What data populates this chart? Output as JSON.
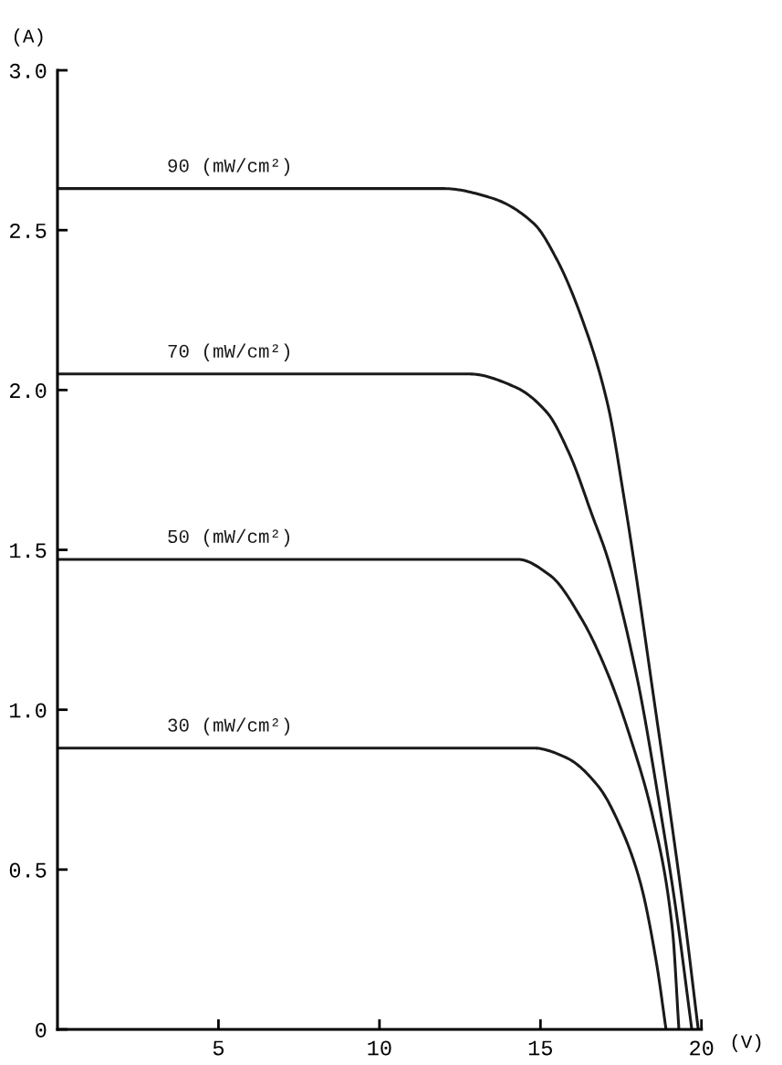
{
  "chart_data": {
    "type": "line",
    "xlabel": "(V)",
    "ylabel": "(A)",
    "xlim": [
      0,
      20
    ],
    "ylim": [
      0,
      3.0
    ],
    "xticks": [
      5,
      10,
      15,
      20
    ],
    "yticks": [
      {
        "value": 0,
        "label": "0"
      },
      {
        "value": 0.5,
        "label": "0.5"
      },
      {
        "value": 1.0,
        "label": "1.0"
      },
      {
        "value": 1.5,
        "label": "1.5"
      },
      {
        "value": 2.0,
        "label": "2.0"
      },
      {
        "value": 2.5,
        "label": "2.5"
      },
      {
        "value": 3.0,
        "label": "3.0"
      }
    ],
    "grid": false,
    "legend": false,
    "marker": "none",
    "line_style": "solid",
    "series": [
      {
        "name": "90 (mW/cm²)",
        "color": "#1a1a1a",
        "x": [
          0,
          12,
          13.5,
          14.8,
          15.5,
          16.3,
          17.1,
          17.6,
          18.0,
          18.5,
          19.0,
          19.5,
          19.9
        ],
        "values": [
          2.63,
          2.63,
          2.6,
          2.52,
          2.41,
          2.22,
          1.95,
          1.66,
          1.4,
          1.05,
          0.7,
          0.33,
          0
        ]
      },
      {
        "name": "70 (mW/cm²)",
        "color": "#1a1a1a",
        "x": [
          0,
          12.8,
          14.2,
          15.2,
          15.9,
          16.6,
          17.1,
          18.0,
          18.7,
          19.2,
          19.7
        ],
        "values": [
          2.05,
          2.05,
          2.01,
          1.93,
          1.8,
          1.61,
          1.47,
          1.1,
          0.7,
          0.38,
          0
        ]
      },
      {
        "name": "50 (mW/cm²)",
        "color": "#1a1a1a",
        "x": [
          0,
          14.3,
          15.3,
          16.3,
          17.1,
          17.8,
          18.5,
          19.1,
          19.3
        ],
        "values": [
          1.47,
          1.47,
          1.42,
          1.28,
          1.11,
          0.91,
          0.66,
          0.31,
          0
        ]
      },
      {
        "name": "30 (mW/cm²)",
        "color": "#1a1a1a",
        "x": [
          0,
          14.8,
          15.8,
          16.8,
          17.5,
          18.1,
          18.6,
          18.9
        ],
        "values": [
          0.88,
          0.88,
          0.85,
          0.76,
          0.63,
          0.46,
          0.21,
          0
        ]
      }
    ]
  }
}
